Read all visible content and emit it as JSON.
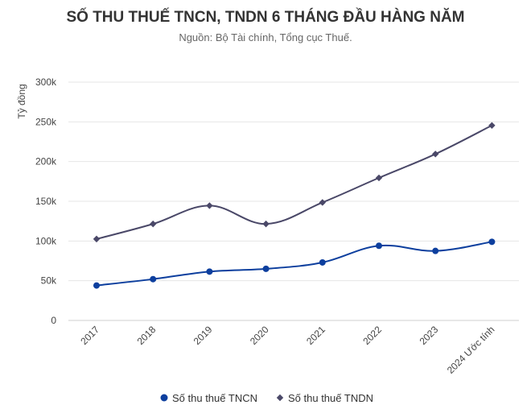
{
  "chart_data": {
    "type": "line",
    "title": "SỐ THU THUẾ TNCN, TNDN 6 THÁNG ĐẦU HÀNG NĂM",
    "subtitle": "Nguồn: Bộ Tài chính, Tổng cục Thuế.",
    "ylabel": "Tỷ đồng",
    "xlabel": "",
    "categories": [
      "2017",
      "2018",
      "2019",
      "2020",
      "2021",
      "2022",
      "2023",
      "2024 Ước tính"
    ],
    "ylim": [
      0,
      300000
    ],
    "yticks": [
      0,
      50000,
      100000,
      150000,
      200000,
      250000,
      300000
    ],
    "ytick_labels": [
      "0",
      "50k",
      "100k",
      "150k",
      "200k",
      "250k",
      "300k"
    ],
    "grid": true,
    "legend": "bottom",
    "series": [
      {
        "name": "Số thu thuế TNCN",
        "values": [
          44000,
          52000,
          61500,
          65000,
          73000,
          94000,
          87500,
          99000
        ],
        "color": "#0d3f9e",
        "marker": "circle"
      },
      {
        "name": "Số thu thuế TNDN",
        "values": [
          102500,
          121500,
          144500,
          121500,
          148500,
          179500,
          209500,
          245500
        ],
        "color": "#4a4868",
        "marker": "diamond"
      }
    ]
  }
}
